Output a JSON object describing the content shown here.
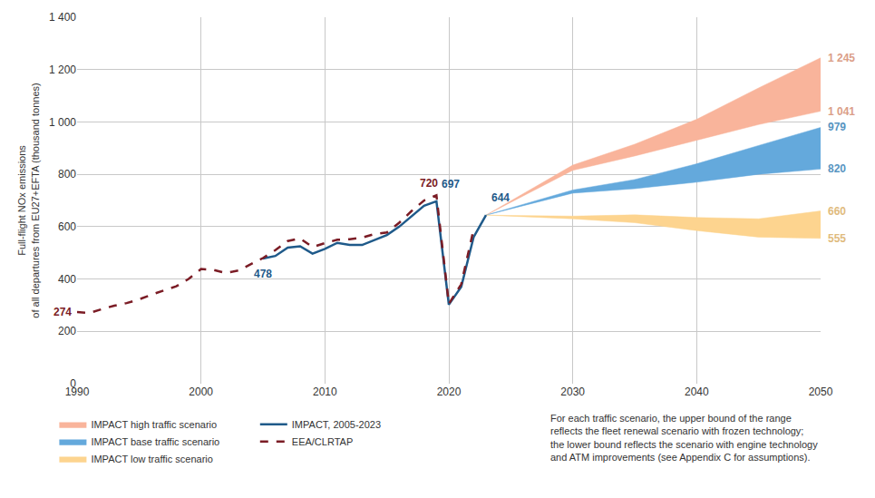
{
  "chart_data": {
    "type": "line",
    "y_label": [
      "Full-flight NOx emissions",
      "of all departures from EU27+EFTA (thousand tonnes)"
    ],
    "xlim": [
      1990,
      2050
    ],
    "xticks": [
      1990,
      2000,
      2010,
      2020,
      2030,
      2040,
      2050
    ],
    "ylim": [
      0,
      1400
    ],
    "yticks": [
      0,
      200,
      400,
      600,
      800,
      {
        "value": 1000,
        "label": "1 000"
      },
      {
        "value": 1200,
        "label": "1 200"
      },
      {
        "value": 1400,
        "label": "1 400"
      }
    ],
    "grid": true,
    "legend": "bottom",
    "note": [
      "For each traffic scenario, the upper bound of the range",
      "reflects the fleet renewal scenario with frozen technology;",
      "the lower bound reflects the scenario with engine technology",
      "and ATM improvements (see Appendix C for assumptions)."
    ],
    "series": [
      {
        "name": "IMPACT high traffic scenario",
        "type": "band",
        "color": "#f9b49b",
        "x": [
          2023,
          2030,
          2035,
          2040,
          2045,
          2050
        ],
        "upper": [
          644,
          835,
          915,
          1010,
          1130,
          1245
        ],
        "lower": [
          644,
          815,
          870,
          930,
          990,
          1041
        ],
        "upper_labels": [
          null,
          null,
          null,
          null,
          null,
          "1 245"
        ],
        "lower_labels": [
          null,
          null,
          null,
          null,
          null,
          "1 041"
        ]
      },
      {
        "name": "IMPACT base traffic scenario",
        "type": "band",
        "color": "#64a9dc",
        "x": [
          2023,
          2030,
          2035,
          2040,
          2045,
          2050
        ],
        "upper": [
          644,
          740,
          780,
          840,
          910,
          979
        ],
        "lower": [
          644,
          728,
          745,
          770,
          800,
          820
        ],
        "upper_labels": [
          null,
          null,
          null,
          null,
          null,
          "979"
        ],
        "lower_labels": [
          null,
          null,
          null,
          null,
          null,
          "820"
        ]
      },
      {
        "name": "IMPACT low traffic scenario",
        "type": "band",
        "color": "#fdd48f",
        "x": [
          2023,
          2030,
          2035,
          2040,
          2045,
          2050
        ],
        "upper": [
          644,
          640,
          645,
          635,
          630,
          660
        ],
        "lower": [
          644,
          630,
          615,
          585,
          560,
          555
        ],
        "upper_labels": [
          null,
          null,
          null,
          null,
          null,
          "660"
        ],
        "lower_labels": [
          null,
          null,
          null,
          null,
          null,
          "555"
        ]
      },
      {
        "name": "IMPACT, 2005-2023",
        "type": "line",
        "color": "#1f5a8a",
        "line_style": "solid",
        "x": [
          2005,
          2006,
          2007,
          2008,
          2009,
          2010,
          2011,
          2012,
          2013,
          2014,
          2015,
          2016,
          2017,
          2018,
          2019,
          2020,
          2021,
          2022,
          2023
        ],
        "values": [
          478,
          488,
          520,
          525,
          497,
          515,
          538,
          530,
          530,
          548,
          568,
          600,
          640,
          680,
          697,
          302,
          370,
          560,
          644
        ],
        "value_labels": [
          "478",
          null,
          null,
          null,
          null,
          null,
          null,
          null,
          null,
          null,
          null,
          null,
          null,
          null,
          "697",
          null,
          null,
          null,
          "644"
        ]
      },
      {
        "name": "EEA/CLRTAP",
        "type": "line",
        "color": "#7b1c25",
        "line_style": "dashed",
        "x": [
          1990,
          1991,
          1992,
          1993,
          1994,
          1995,
          1996,
          1997,
          1998,
          1999,
          2000,
          2001,
          2002,
          2003,
          2004,
          2005,
          2006,
          2007,
          2008,
          2009,
          2010,
          2011,
          2012,
          2013,
          2014,
          2015,
          2016,
          2017,
          2018,
          2019,
          2020,
          2021,
          2022
        ],
        "values": [
          274,
          270,
          285,
          298,
          308,
          322,
          340,
          355,
          372,
          400,
          438,
          435,
          423,
          432,
          455,
          480,
          510,
          545,
          555,
          522,
          537,
          550,
          552,
          558,
          572,
          578,
          615,
          660,
          700,
          720,
          305,
          380,
          590
        ],
        "value_labels": [
          "274",
          null,
          null,
          null,
          null,
          null,
          null,
          null,
          null,
          null,
          null,
          null,
          null,
          null,
          null,
          null,
          null,
          null,
          null,
          null,
          null,
          null,
          null,
          null,
          null,
          null,
          null,
          null,
          null,
          "720",
          null,
          null,
          null
        ]
      }
    ]
  }
}
